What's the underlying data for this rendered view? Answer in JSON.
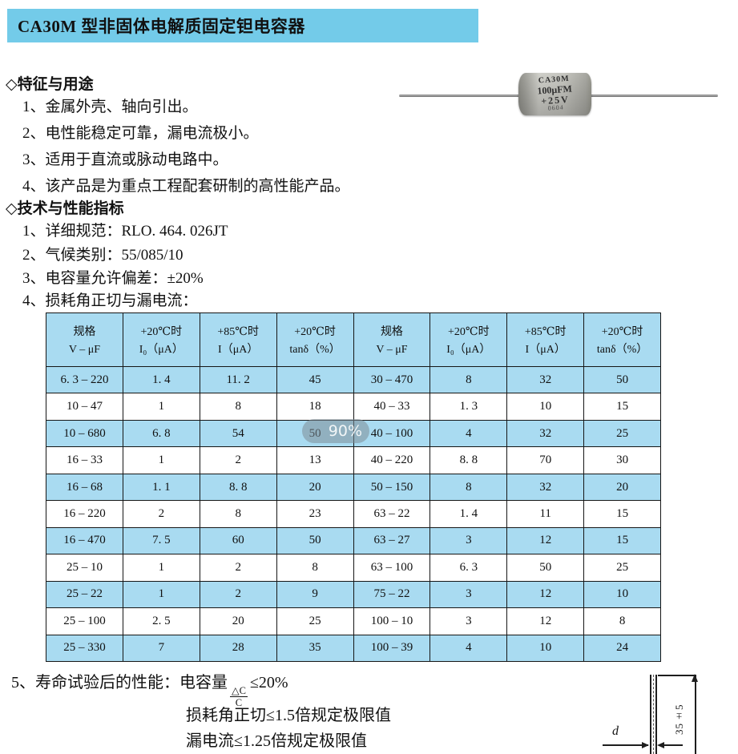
{
  "header": {
    "title": "CA30M 型非固体电解质固定钽电容器",
    "bg_color": "#73CBE9"
  },
  "capacitor_photo": {
    "markings": [
      "CA30M",
      "100μFM",
      "+25V",
      "0604"
    ]
  },
  "sections": {
    "features": {
      "heading": "◇特征与用途",
      "items": [
        "1、金属外壳、轴向引出。",
        "2、电性能稳定可靠，漏电流极小。",
        "3、适用于直流或脉动电路中。",
        "4、该产品是为重点工程配套研制的高性能产品。"
      ]
    },
    "specs": {
      "heading": "◇技术与性能指标",
      "items": [
        "1、详细规范：RLO. 464. 026JT",
        "2、气候类别：55/085/10",
        "3、电容量允许偏差：±20%",
        "4、损耗角正切与漏电流："
      ]
    },
    "life_test": {
      "item_prefix": "5、寿命试验后的性能：电容量",
      "frac_numerator": "△C",
      "frac_denominator": "C",
      "item_suffix": "≤20%",
      "lines": [
        "损耗角正切≤1.5倍规定极限值",
        "漏电流≤1.25倍规定极限值"
      ]
    }
  },
  "table": {
    "highlight_color": "#A9DBF1",
    "border_color": "#161616",
    "headers": [
      {
        "line1": "规格",
        "line2": "V – μF"
      },
      {
        "line1": "+20℃时",
        "line2": "I₀（μA）"
      },
      {
        "line1": "+85℃时",
        "line2": "I（μA）"
      },
      {
        "line1": "+20℃时",
        "line2": "tanδ（%）"
      },
      {
        "line1": "规格",
        "line2": "V – μF"
      },
      {
        "line1": "+20℃时",
        "line2": "I₀（μA）"
      },
      {
        "line1": "+85℃时",
        "line2": "I（μA）"
      },
      {
        "line1": "+20℃时",
        "line2": "tanδ（%）"
      }
    ],
    "rows": [
      [
        "6. 3 – 220",
        "1. 4",
        "11. 2",
        "45",
        "30 – 470",
        "8",
        "32",
        "50"
      ],
      [
        "10 – 47",
        "1",
        "8",
        "18",
        "40 – 33",
        "1. 3",
        "10",
        "15"
      ],
      [
        "10 – 680",
        "6. 8",
        "54",
        "50",
        "40 – 100",
        "4",
        "32",
        "25"
      ],
      [
        "16 – 33",
        "1",
        "2",
        "13",
        "40 – 220",
        "8. 8",
        "70",
        "30"
      ],
      [
        "16 – 68",
        "1. 1",
        "8. 8",
        "20",
        "50 – 150",
        "8",
        "32",
        "20"
      ],
      [
        "16 – 220",
        "2",
        "8",
        "23",
        "63 – 22",
        "1. 4",
        "11",
        "15"
      ],
      [
        "16 – 470",
        "7. 5",
        "60",
        "50",
        "63 – 27",
        "3",
        "12",
        "15"
      ],
      [
        "25 – 10",
        "1",
        "2",
        "8",
        "63 – 100",
        "6. 3",
        "50",
        "25"
      ],
      [
        "25 – 22",
        "1",
        "2",
        "9",
        "75 – 22",
        "3",
        "12",
        "10"
      ],
      [
        "25 – 100",
        "2. 5",
        "20",
        "25",
        "100 – 10",
        "3",
        "12",
        "8"
      ],
      [
        "25 – 330",
        "7",
        "28",
        "35",
        "100 – 39",
        "4",
        "10",
        "24"
      ]
    ]
  },
  "overlay": {
    "zoom_badge": "90%"
  },
  "diagram": {
    "length_label": "35±5",
    "diameter_label": "d"
  }
}
